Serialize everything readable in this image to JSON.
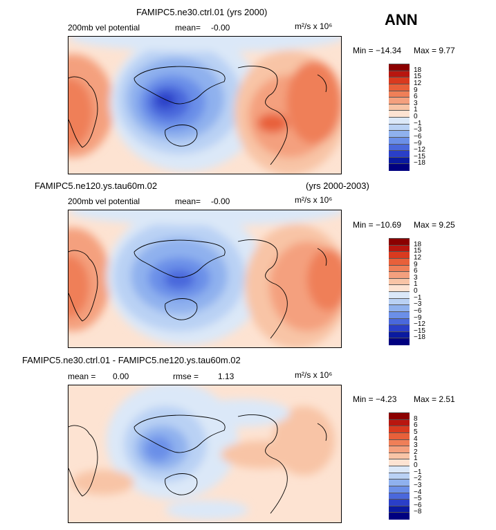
{
  "season": "ANN",
  "panels": [
    {
      "title": "FAMIPC5.ne30.ctrl.01 (yrs 2000)",
      "left_label": "200mb vel potential",
      "stat_label": "mean=",
      "stat_value": "-0.00",
      "units": "m²/s x 10⁶",
      "min_text": "Min = −14.34",
      "max_text": "Max =    9.77",
      "levels": [
        "18",
        "15",
        "12",
        "9",
        "6",
        "3",
        "1",
        "0",
        "−1",
        "−3",
        "−6",
        "−9",
        "−12",
        "−15",
        "−18"
      ]
    },
    {
      "title_left": "FAMIPC5.ne120.ys.tau60m.02",
      "title_right": "(yrs 2000-2003)",
      "left_label": "200mb vel potential",
      "stat_label": "mean=",
      "stat_value": "-0.00",
      "units": "m²/s x 10⁶",
      "min_text": "Min = −10.69",
      "max_text": "Max =    9.25",
      "levels": [
        "18",
        "15",
        "12",
        "9",
        "6",
        "3",
        "1",
        "0",
        "−1",
        "−3",
        "−6",
        "−9",
        "−12",
        "−15",
        "−18"
      ]
    },
    {
      "title": "FAMIPC5.ne30.ctrl.01 - FAMIPC5.ne120.ys.tau60m.02",
      "left_label": "mean =",
      "left_value": "0.00",
      "stat_label": "rmse =",
      "stat_value": "1.13",
      "units": "m²/s x 10⁶",
      "min_text": "Min =  −4.23",
      "max_text": "Max =    2.51",
      "levels": [
        "8",
        "6",
        "5",
        "4",
        "3",
        "2",
        "1",
        "0",
        "−1",
        "−2",
        "−3",
        "−4",
        "−5",
        "−6",
        "−8"
      ]
    }
  ],
  "palette": [
    "#8b0000",
    "#b8160f",
    "#d93a1f",
    "#e8603a",
    "#ef7f58",
    "#f4a07e",
    "#f8c4a6",
    "#fde3d2",
    "#dbe8f8",
    "#b9d1f4",
    "#8fb1ee",
    "#6b8fe8",
    "#4a68dc",
    "#2a3fc8",
    "#0a1aa0",
    "#000080"
  ],
  "chart_data": {
    "type": "heatmap",
    "field": "200mb velocity potential (annual mean)",
    "units": "m2/s x 10^6",
    "panels": [
      {
        "name": "FAMIPC5.ne30.ctrl.01",
        "min": -14.34,
        "max": 9.77,
        "mean": -0.0,
        "contour_levels": [
          -18,
          -15,
          -12,
          -9,
          -6,
          -3,
          -1,
          0,
          1,
          3,
          6,
          9,
          12,
          15,
          18
        ]
      },
      {
        "name": "FAMIPC5.ne120.ys.tau60m.02",
        "min": -10.69,
        "max": 9.25,
        "mean": -0.0,
        "contour_levels": [
          -18,
          -15,
          -12,
          -9,
          -6,
          -3,
          -1,
          0,
          1,
          3,
          6,
          9,
          12,
          15,
          18
        ]
      },
      {
        "name": "difference",
        "min": -4.23,
        "max": 2.51,
        "mean": 0.0,
        "rmse": 1.13,
        "contour_levels": [
          -8,
          -6,
          -5,
          -4,
          -3,
          -2,
          -1,
          0,
          1,
          2,
          3,
          4,
          5,
          6,
          8
        ]
      }
    ]
  }
}
